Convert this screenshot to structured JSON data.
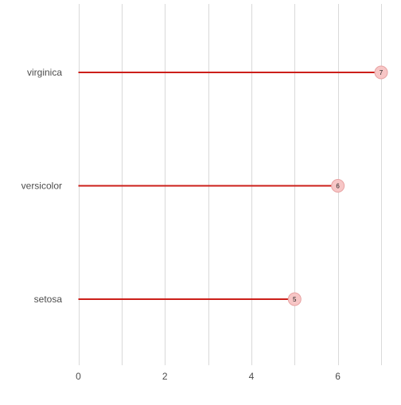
{
  "chart_data": {
    "type": "bar",
    "orientation": "horizontal",
    "style": "lollipop",
    "categories": [
      "setosa",
      "versicolor",
      "virginica"
    ],
    "values": [
      5,
      6,
      7
    ],
    "value_labels": [
      "5",
      "6",
      "7"
    ],
    "xlim": [
      0,
      7
    ],
    "x_ticks": [
      0,
      2,
      4,
      6
    ],
    "x_tick_labels": [
      "0",
      "2",
      "4",
      "6"
    ],
    "minor_gridlines": [
      1,
      3,
      5,
      7
    ],
    "grid": true,
    "title": "",
    "xlabel": "",
    "ylabel": "",
    "colors": {
      "stem": "#cc1f1a",
      "point_fill": "#f7c6c6",
      "point_stroke": "#e8a3a3"
    }
  }
}
